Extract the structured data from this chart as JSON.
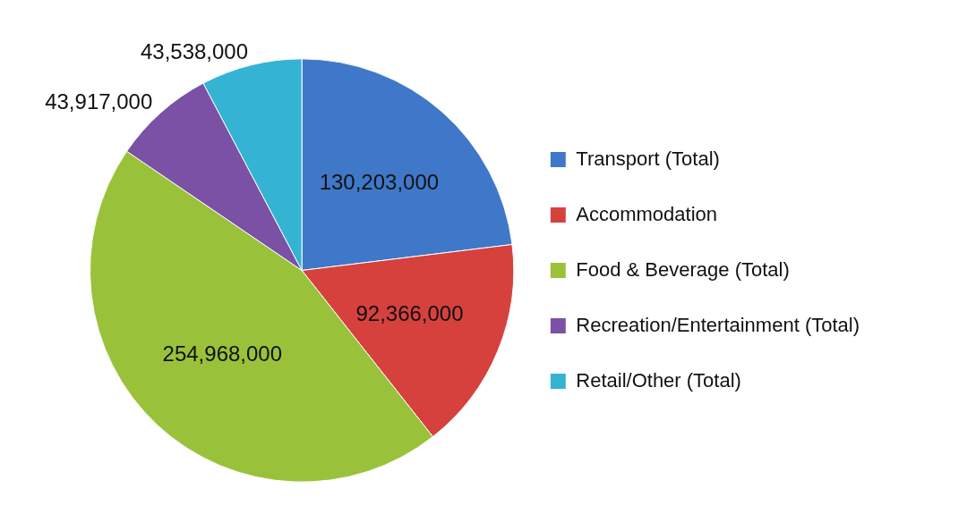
{
  "chart_data": {
    "type": "pie",
    "categories": [
      "Transport (Total)",
      "Accommodation",
      "Food & Beverage (Total)",
      "Recreation/Entertainment (Total)",
      "Retail/Other (Total)"
    ],
    "values": [
      130203000,
      92366000,
      254968000,
      43917000,
      43538000
    ],
    "colors": [
      "#3f78c8",
      "#d6413e",
      "#99c23a",
      "#7b51a6",
      "#35b3d3"
    ],
    "value_labels": [
      "130,203,000",
      "92,366,000",
      "254,968,000",
      "43,917,000",
      "43,538,000"
    ],
    "legend": "right"
  }
}
